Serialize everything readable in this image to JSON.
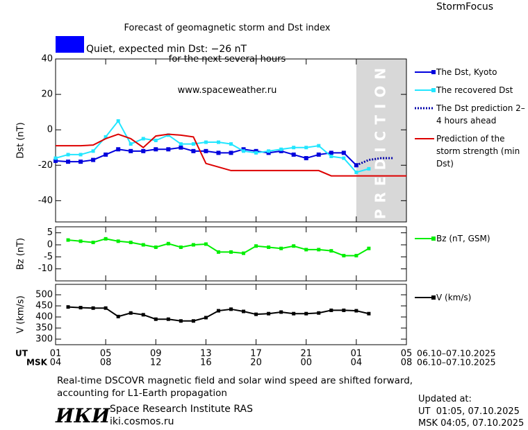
{
  "header": {
    "title_lines": [
      "Forecast of geomagnetic storm and Dst index",
      "for the next several hours",
      "www.spaceweather.ru"
    ],
    "brand": "StormFocus"
  },
  "status": {
    "color": "#0000ff",
    "text": "Quiet, expected min Dst: −26 nT"
  },
  "chart_data": [
    {
      "type": "line",
      "ylabel": "Dst (nT)",
      "xlim": [
        0,
        28
      ],
      "ylim": [
        -52,
        40
      ],
      "yticks": [
        -40,
        -20,
        0,
        20,
        40
      ],
      "prediction_band": [
        24,
        28
      ],
      "prediction_label": "PREDICTION",
      "series": [
        {
          "name": "The Dst, Kyoto",
          "color": "#0000dd",
          "style": "markers",
          "x": [
            0,
            1,
            2,
            3,
            4,
            5,
            6,
            7,
            8,
            9,
            10,
            11,
            12,
            13,
            14,
            15,
            16,
            17,
            18,
            19,
            20,
            21,
            22,
            23,
            24
          ],
          "values": [
            -17.5,
            -18,
            -18,
            -17,
            -14,
            -11,
            -12,
            -12,
            -11,
            -11,
            -10,
            -12,
            -12,
            -13,
            -13,
            -11,
            -12,
            -13,
            -12,
            -14,
            -16,
            -14,
            -13,
            -13,
            -20
          ]
        },
        {
          "name": "The recovered Dst",
          "color": "#22e6ff",
          "style": "markers",
          "x": [
            0,
            1,
            2,
            3,
            4,
            5,
            6,
            7,
            8,
            9,
            10,
            11,
            12,
            13,
            14,
            15,
            16,
            17,
            18,
            19,
            20,
            21,
            22,
            23,
            24,
            25
          ],
          "values": [
            -16,
            -14,
            -14,
            -12,
            -4,
            5,
            -8,
            -5,
            -6,
            -3,
            -8,
            -8,
            -7,
            -7,
            -8,
            -12,
            -13,
            -12,
            -11,
            -10,
            -10,
            -9,
            -15,
            -16,
            -24,
            -22
          ]
        },
        {
          "name": "The Dst prediction 2–4 hours ahead",
          "color": "#0000aa",
          "style": "dotted",
          "x": [
            24,
            25,
            26,
            27
          ],
          "values": [
            -20,
            -17,
            -16,
            -16
          ]
        },
        {
          "name": "Prediction of the storm strength (min Dst)",
          "color": "#dd0000",
          "style": "line",
          "x": [
            0,
            1,
            2,
            3,
            4,
            5,
            6,
            7,
            8,
            9,
            10,
            11,
            12,
            13,
            14,
            15,
            16,
            17,
            18,
            19,
            20,
            21,
            22,
            23,
            24,
            25,
            26,
            27,
            28
          ],
          "values": [
            -9,
            -9,
            -9,
            -8.6,
            -5,
            -2.5,
            -5,
            -10,
            -3.5,
            -2.5,
            -3,
            -4,
            -19,
            -21,
            -23,
            -23,
            -23,
            -23,
            -23,
            -23,
            -23,
            -23,
            -26,
            -26,
            -26,
            -26,
            -26,
            -26,
            -26
          ]
        }
      ]
    },
    {
      "type": "line",
      "ylabel": "Bz (nT)",
      "xlim": [
        0,
        28
      ],
      "ylim": [
        -15,
        7.5
      ],
      "yticks": [
        -10,
        -5,
        0,
        5
      ],
      "series": [
        {
          "name": "Bz (nT, GSM)",
          "color": "#00ee00",
          "style": "markers",
          "x": [
            1,
            2,
            3,
            4,
            5,
            6,
            7,
            8,
            9,
            10,
            11,
            12,
            13,
            14,
            15,
            16,
            17,
            18,
            19,
            20,
            21,
            22,
            23,
            24,
            25
          ],
          "values": [
            2,
            1.5,
            1,
            2.5,
            1.5,
            1,
            0,
            -1,
            0.5,
            -1,
            0,
            0.3,
            -3,
            -3,
            -3.5,
            -0.5,
            -1,
            -1.5,
            -0.5,
            -2,
            -2,
            -2.5,
            -4.5,
            -4.5,
            -1.5
          ]
        }
      ]
    },
    {
      "type": "line",
      "ylabel": "V (km/s)",
      "xlim": [
        0,
        28
      ],
      "ylim": [
        275,
        547
      ],
      "yticks": [
        300,
        350,
        400,
        450,
        500
      ],
      "xticks": [
        {
          "value": 0,
          "label": "01"
        },
        {
          "value": 4,
          "label": "05"
        },
        {
          "value": 8,
          "label": "09"
        },
        {
          "value": 12,
          "label": "13"
        },
        {
          "value": 16,
          "label": "17"
        },
        {
          "value": 20,
          "label": "21"
        },
        {
          "value": 24,
          "label": "01"
        },
        {
          "value": 28,
          "label": "05"
        }
      ],
      "msk_ticks": [
        {
          "value": 0,
          "label": "04"
        },
        {
          "value": 4,
          "label": "08"
        },
        {
          "value": 8,
          "label": "12"
        },
        {
          "value": 12,
          "label": "16"
        },
        {
          "value": 16,
          "label": "20"
        },
        {
          "value": 20,
          "label": "00"
        },
        {
          "value": 24,
          "label": "04"
        },
        {
          "value": 28,
          "label": "08"
        }
      ],
      "ut_label": "UT",
      "msk_label": "MSK",
      "ut_range": "06.10–07.10.2025",
      "msk_range": "06.10–07.10.2025",
      "series": [
        {
          "name": "V (km/s)",
          "color": "#000000",
          "style": "markers",
          "x": [
            1,
            2,
            3,
            4,
            5,
            6,
            7,
            8,
            9,
            10,
            11,
            12,
            13,
            14,
            15,
            16,
            17,
            18,
            19,
            20,
            21,
            22,
            23,
            24,
            25
          ],
          "values": [
            445,
            442,
            440,
            440,
            402,
            418,
            410,
            390,
            390,
            382,
            382,
            397,
            428,
            435,
            425,
            412,
            415,
            422,
            415,
            415,
            418,
            430,
            430,
            428,
            415
          ]
        }
      ]
    }
  ],
  "footer": {
    "note": "Real-time DSCOVR magnetic field and solar wind speed are shifted forward, accounting for L1-Earth propagation",
    "logo": "ИКИ",
    "institute": "Space Research Institute RAS",
    "site": "iki.cosmos.ru",
    "updated_label": "Updated at:",
    "updated_ut": "UT  01:05, 07.10.2025",
    "updated_msk": "MSK 04:05, 07.10.2025"
  }
}
